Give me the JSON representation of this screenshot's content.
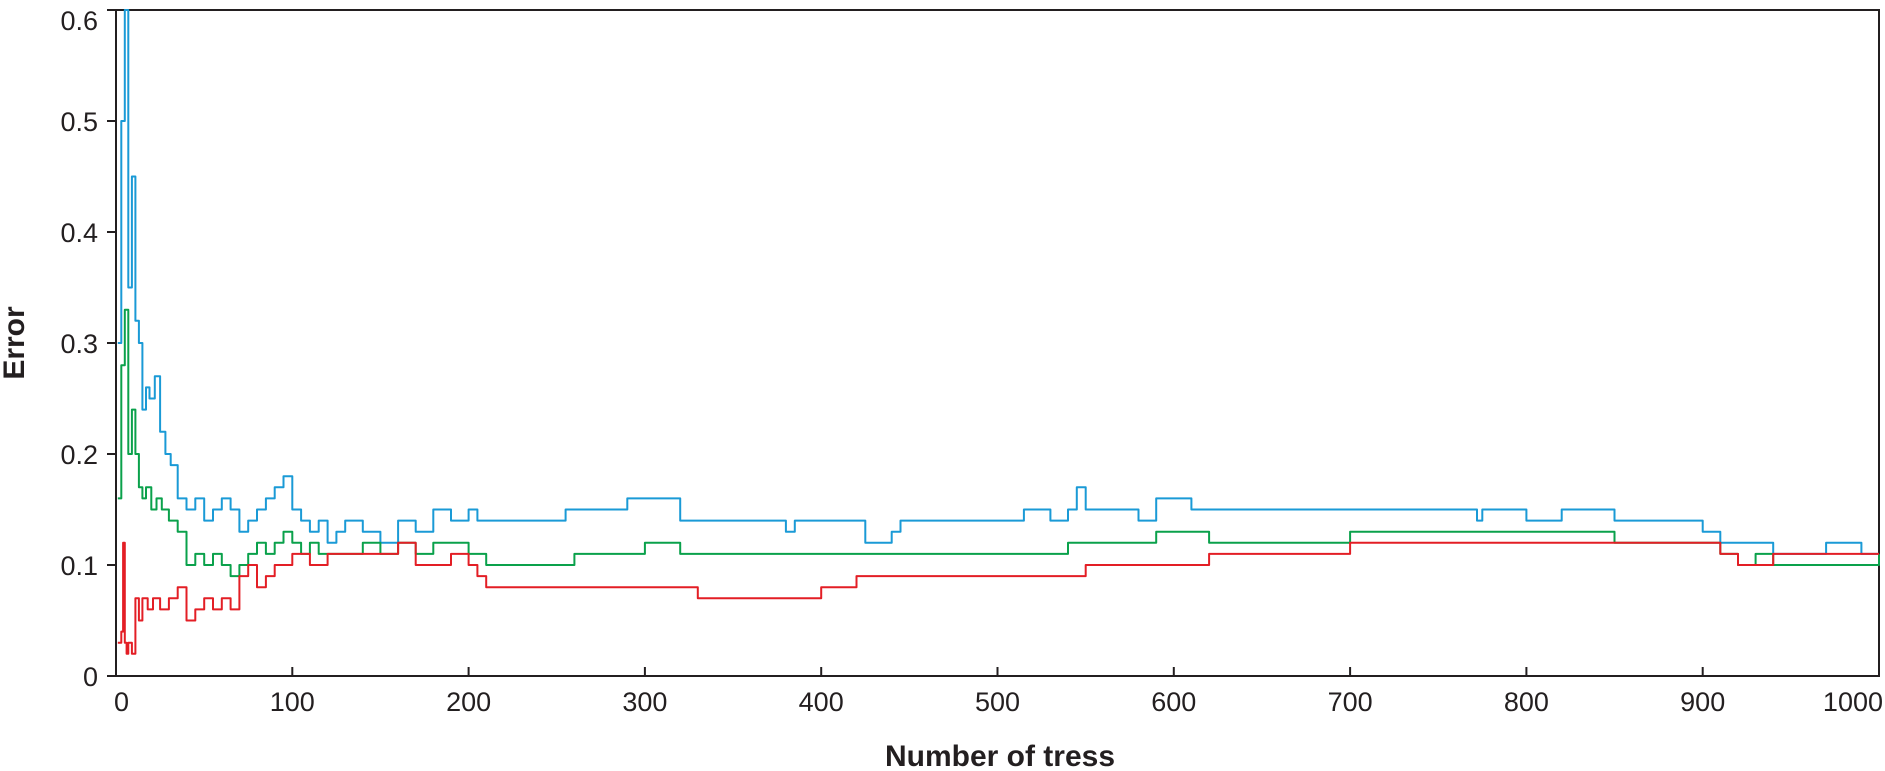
{
  "chart_data": {
    "type": "line",
    "title": "",
    "xlabel": "Number of tress",
    "ylabel": "Error",
    "xlim": [
      0,
      1000
    ],
    "ylim": [
      0,
      0.6
    ],
    "x_ticks": [
      0,
      100,
      200,
      300,
      400,
      500,
      600,
      700,
      800,
      900,
      1000
    ],
    "x_tick_labels": [
      "0",
      "100",
      "200",
      "300",
      "400",
      "500",
      "600",
      "700",
      "800",
      "900",
      "1000"
    ],
    "y_ticks": [
      0,
      0.1,
      0.2,
      0.3,
      0.4,
      0.5,
      0.6
    ],
    "y_tick_labels": [
      "0",
      "0.1",
      "0.2",
      "0.3",
      "0.4",
      "0.5",
      "0.6"
    ],
    "grid": false,
    "legend": "none",
    "series": [
      {
        "color": "#1a9ad6",
        "x": [
          1,
          3,
          5,
          7,
          9,
          11,
          13,
          15,
          17,
          19,
          22,
          25,
          28,
          31,
          35,
          40,
          45,
          50,
          55,
          60,
          65,
          70,
          75,
          80,
          85,
          90,
          95,
          100,
          105,
          110,
          115,
          120,
          125,
          130,
          140,
          150,
          160,
          170,
          180,
          190,
          200,
          205,
          250,
          255,
          290,
          300,
          320,
          330,
          380,
          385,
          420,
          425,
          440,
          445,
          510,
          515,
          530,
          540,
          545,
          550,
          580,
          590,
          610,
          620,
          700,
          770,
          772,
          775,
          780,
          800,
          820,
          830,
          850,
          900,
          910,
          930,
          940,
          950,
          970,
          990,
          1000
        ],
        "y": [
          0.3,
          0.5,
          0.6,
          0.35,
          0.45,
          0.32,
          0.3,
          0.24,
          0.26,
          0.25,
          0.27,
          0.22,
          0.2,
          0.19,
          0.16,
          0.15,
          0.16,
          0.14,
          0.15,
          0.16,
          0.15,
          0.13,
          0.14,
          0.15,
          0.16,
          0.17,
          0.18,
          0.15,
          0.14,
          0.13,
          0.14,
          0.12,
          0.13,
          0.14,
          0.13,
          0.12,
          0.14,
          0.13,
          0.15,
          0.14,
          0.15,
          0.14,
          0.14,
          0.15,
          0.16,
          0.16,
          0.14,
          0.14,
          0.13,
          0.14,
          0.14,
          0.12,
          0.13,
          0.14,
          0.14,
          0.15,
          0.14,
          0.15,
          0.17,
          0.15,
          0.14,
          0.16,
          0.15,
          0.15,
          0.15,
          0.15,
          0.14,
          0.15,
          0.15,
          0.14,
          0.15,
          0.15,
          0.14,
          0.13,
          0.12,
          0.12,
          0.11,
          0.11,
          0.12,
          0.11,
          0.11
        ]
      },
      {
        "color": "#0aa14b",
        "x": [
          1,
          3,
          5,
          7,
          9,
          11,
          13,
          15,
          17,
          20,
          23,
          26,
          30,
          35,
          40,
          45,
          50,
          55,
          60,
          65,
          70,
          75,
          80,
          85,
          90,
          95,
          100,
          105,
          110,
          115,
          120,
          130,
          140,
          150,
          160,
          170,
          180,
          190,
          200,
          205,
          210,
          260,
          300,
          320,
          330,
          380,
          400,
          420,
          450,
          500,
          540,
          550,
          580,
          590,
          600,
          620,
          700,
          770,
          800,
          820,
          850,
          900,
          910,
          920,
          930,
          940,
          960,
          1000
        ],
        "y": [
          0.16,
          0.28,
          0.33,
          0.2,
          0.24,
          0.2,
          0.17,
          0.16,
          0.17,
          0.15,
          0.16,
          0.15,
          0.14,
          0.13,
          0.1,
          0.11,
          0.1,
          0.11,
          0.1,
          0.09,
          0.1,
          0.11,
          0.12,
          0.11,
          0.12,
          0.13,
          0.12,
          0.11,
          0.12,
          0.11,
          0.11,
          0.11,
          0.12,
          0.11,
          0.12,
          0.11,
          0.12,
          0.12,
          0.11,
          0.11,
          0.1,
          0.11,
          0.12,
          0.11,
          0.11,
          0.11,
          0.11,
          0.11,
          0.11,
          0.11,
          0.12,
          0.12,
          0.12,
          0.13,
          0.13,
          0.12,
          0.13,
          0.13,
          0.13,
          0.13,
          0.12,
          0.12,
          0.11,
          0.1,
          0.11,
          0.1,
          0.1,
          0.11
        ]
      },
      {
        "color": "#e31e25",
        "x": [
          1,
          3,
          4,
          5,
          6,
          7,
          9,
          11,
          13,
          15,
          18,
          21,
          25,
          30,
          35,
          40,
          45,
          50,
          55,
          60,
          65,
          70,
          75,
          80,
          85,
          90,
          100,
          110,
          120,
          130,
          140,
          150,
          160,
          170,
          180,
          190,
          200,
          205,
          210,
          250,
          300,
          320,
          330,
          380,
          400,
          420,
          500,
          545,
          550,
          600,
          620,
          700,
          750,
          800,
          850,
          900,
          910,
          920,
          930,
          940,
          950,
          1000
        ],
        "y": [
          0.03,
          0.04,
          0.12,
          0.03,
          0.02,
          0.03,
          0.02,
          0.07,
          0.05,
          0.07,
          0.06,
          0.07,
          0.06,
          0.07,
          0.08,
          0.05,
          0.06,
          0.07,
          0.06,
          0.07,
          0.06,
          0.09,
          0.1,
          0.08,
          0.09,
          0.1,
          0.11,
          0.1,
          0.11,
          0.11,
          0.11,
          0.11,
          0.12,
          0.1,
          0.1,
          0.11,
          0.1,
          0.09,
          0.08,
          0.08,
          0.08,
          0.08,
          0.07,
          0.07,
          0.08,
          0.09,
          0.09,
          0.09,
          0.1,
          0.1,
          0.11,
          0.12,
          0.12,
          0.12,
          0.12,
          0.12,
          0.11,
          0.1,
          0.1,
          0.11,
          0.11,
          0.11
        ]
      }
    ]
  }
}
